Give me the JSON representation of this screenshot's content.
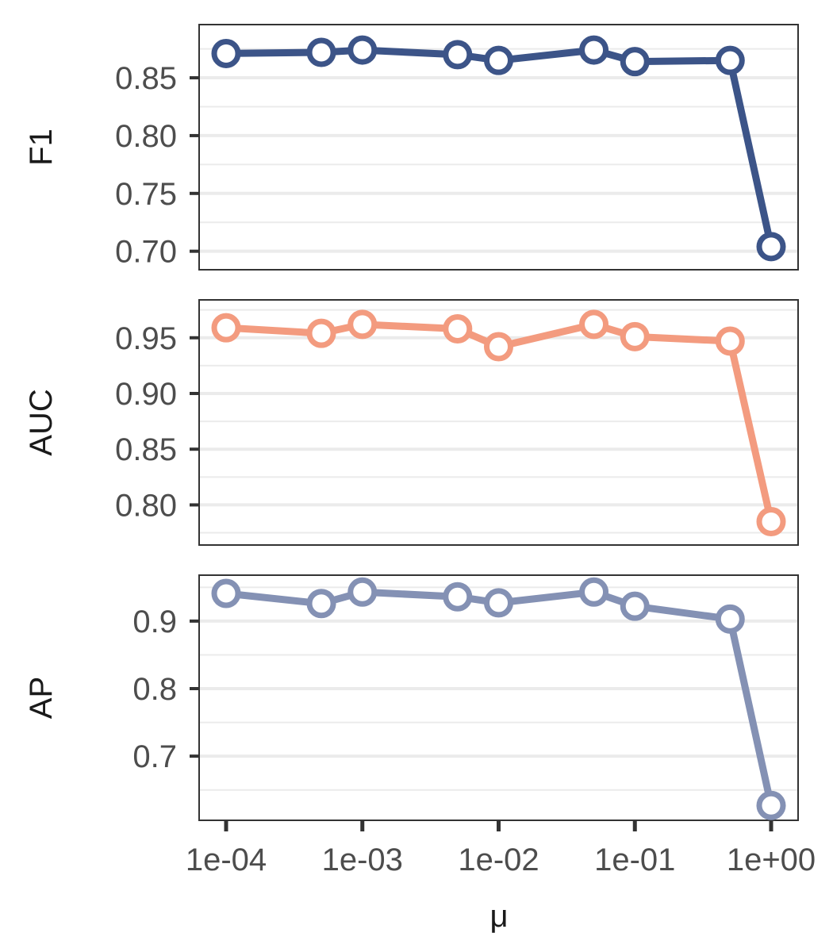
{
  "chart_data": {
    "type": "line",
    "xlabel": "μ",
    "x_scale": "log",
    "x": [
      0.0001,
      0.0005,
      0.001,
      0.005,
      0.01,
      0.05,
      0.1,
      0.5,
      1
    ],
    "x_tick_values": [
      0.0001,
      0.001,
      0.01,
      0.1,
      1
    ],
    "x_tick_labels": [
      "1e-04",
      "1e-03",
      "1e-02",
      "1e-01",
      "1e+00"
    ],
    "grid": "horizontal",
    "panels": [
      {
        "ylabel": "F1",
        "color": "#3c5488",
        "ylim": [
          0.684,
          0.896
        ],
        "y_ticks": [
          0.7,
          0.75,
          0.8,
          0.85
        ],
        "y_tick_labels": [
          "0.70",
          "0.75",
          "0.80",
          "0.85"
        ],
        "values": [
          0.871,
          0.872,
          0.874,
          0.87,
          0.865,
          0.874,
          0.864,
          0.865,
          0.704
        ]
      },
      {
        "ylabel": "AUC",
        "color": "#f39b7f",
        "ylim": [
          0.764,
          0.984
        ],
        "y_ticks": [
          0.8,
          0.85,
          0.9,
          0.95
        ],
        "y_tick_labels": [
          "0.80",
          "0.85",
          "0.90",
          "0.95"
        ],
        "values": [
          0.959,
          0.954,
          0.962,
          0.958,
          0.942,
          0.962,
          0.951,
          0.947,
          0.785
        ]
      },
      {
        "ylabel": "AP",
        "color": "#8491b4",
        "ylim": [
          0.605,
          0.968
        ],
        "y_ticks": [
          0.7,
          0.8,
          0.9
        ],
        "y_tick_labels": [
          "0.7",
          "0.8",
          "0.9"
        ],
        "values": [
          0.941,
          0.926,
          0.943,
          0.936,
          0.927,
          0.943,
          0.922,
          0.903,
          0.627
        ]
      }
    ]
  }
}
